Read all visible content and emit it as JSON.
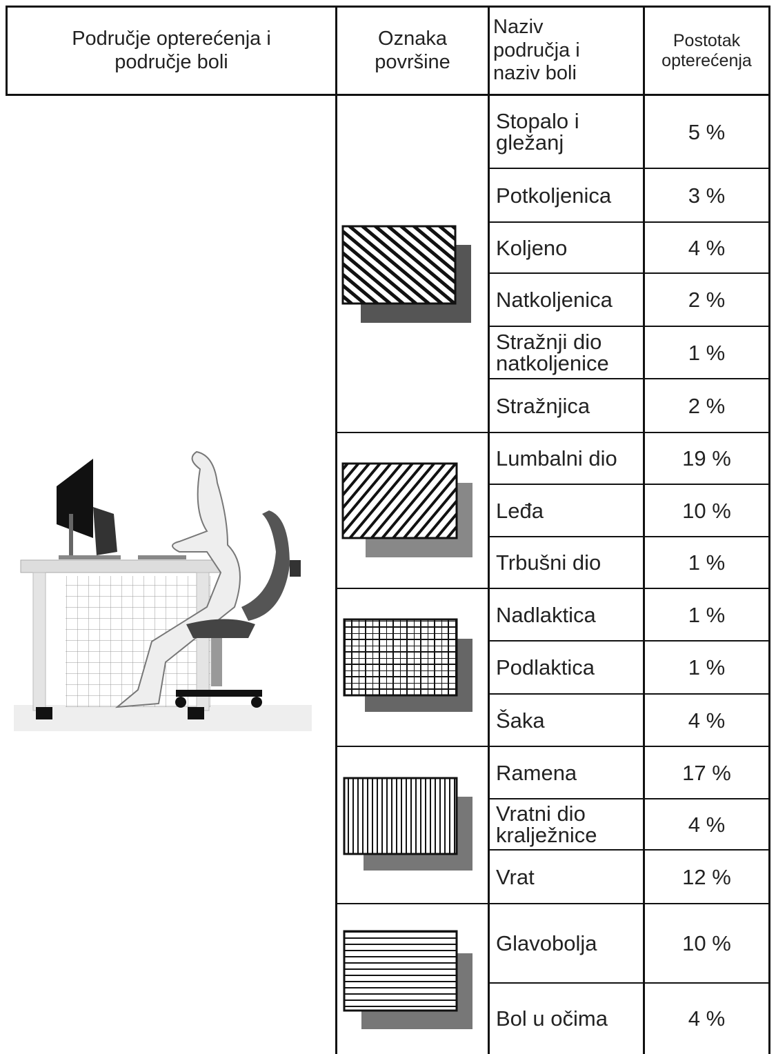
{
  "table": {
    "header": [
      "Područje opterećenja i\npodručje boli",
      "Oznaka\npovršine",
      "Naziv\npodručja i\nnaziv boli",
      "Postotak\nopterećenja"
    ],
    "rows": [
      [
        "Stopalo i\ngležanj",
        "5 %"
      ],
      [
        "Potkoljenica",
        "3 %"
      ],
      [
        "Koljeno",
        "4 %"
      ],
      [
        "Natkoljenica",
        "2 %"
      ],
      [
        "Stražnji dio\nnatkoljenice",
        "1 %"
      ],
      [
        "Stražnjica",
        "2 %"
      ],
      [
        "Lumbalni dio",
        "19 %"
      ],
      [
        "Leđa",
        "10 %"
      ],
      [
        "Trbušni dio",
        "1 %"
      ],
      [
        "Nadlaktica",
        "1 %"
      ],
      [
        "Podlaktica",
        "1 %"
      ],
      [
        "Šaka",
        "4 %"
      ],
      [
        "Ramena",
        "17 %"
      ],
      [
        "Vratni dio\nkralježnice",
        "4 %"
      ],
      [
        "Vrat",
        "12 %"
      ],
      [
        "Glavobolja",
        "10 %"
      ],
      [
        "Bol u očima",
        "4 %"
      ]
    ]
  }
}
